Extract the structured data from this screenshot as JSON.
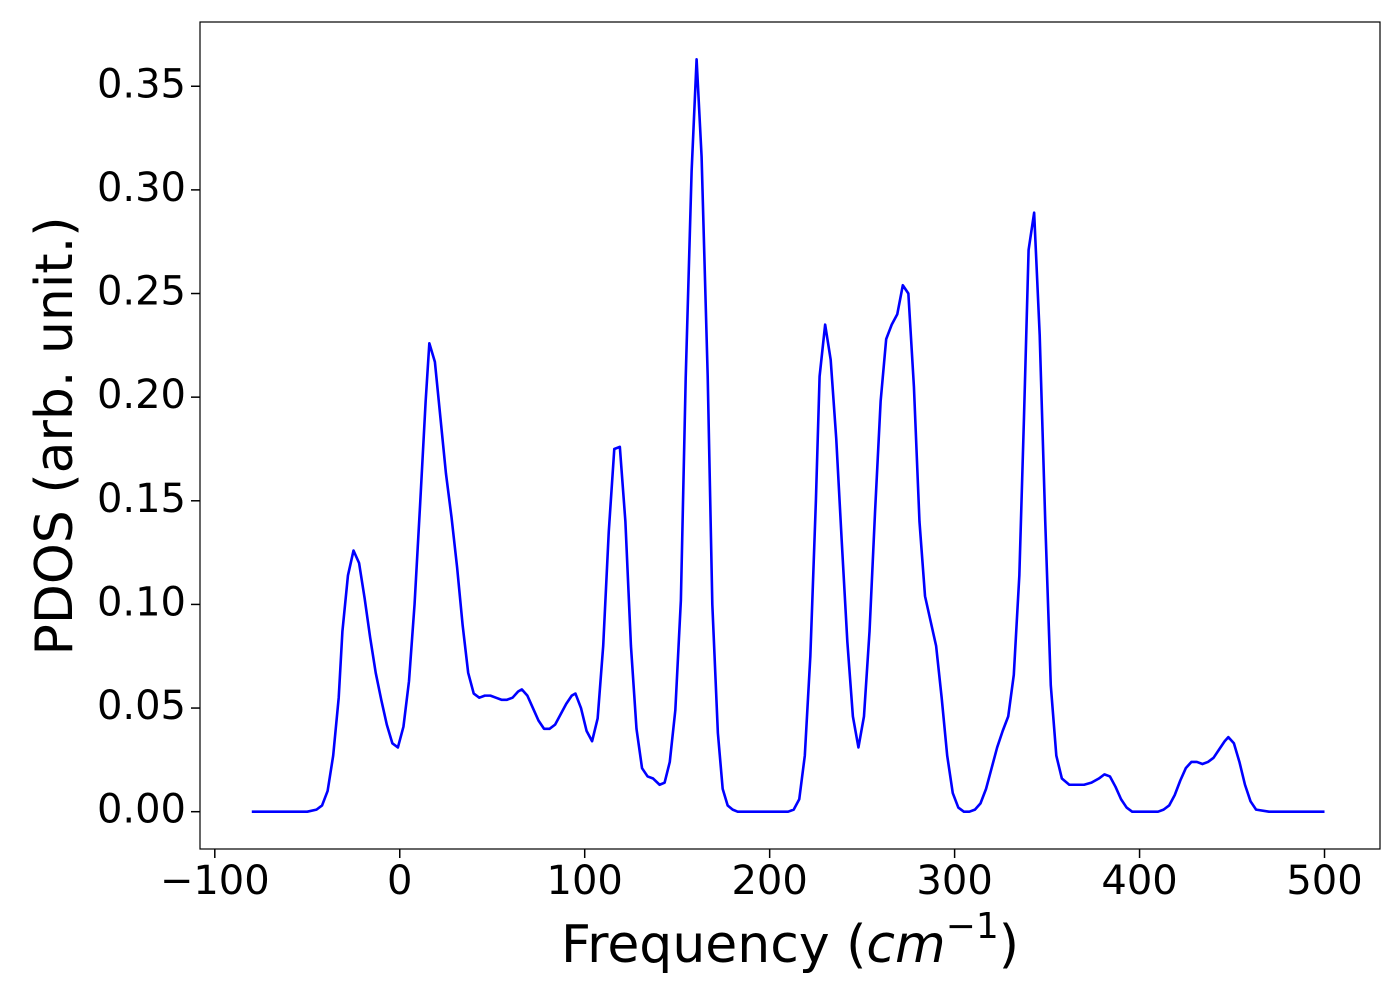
{
  "chart_data": {
    "type": "line",
    "ylabel": "PDOS (arb. unit.)",
    "xlabel_parts": [
      "Frequency (",
      "cm",
      "−1",
      ")"
    ],
    "xlim": [
      -108,
      530
    ],
    "ylim": [
      -0.018,
      0.381
    ],
    "xticks": [
      {
        "value": -100,
        "label": "−100"
      },
      0,
      100,
      200,
      300,
      400,
      500
    ],
    "yticks": [
      {
        "value": 0,
        "label": "0.00"
      },
      {
        "value": 0.05,
        "label": "0.05"
      },
      {
        "value": 0.1,
        "label": "0.10"
      },
      {
        "value": 0.15,
        "label": "0.15"
      },
      {
        "value": 0.2,
        "label": "0.20"
      },
      {
        "value": 0.25,
        "label": "0.25"
      },
      {
        "value": 0.3,
        "label": "0.30"
      },
      {
        "value": 0.35,
        "label": "0.35"
      }
    ],
    "x": [
      -80,
      -50,
      -45,
      -42,
      -39,
      -36,
      -33,
      -31,
      -28,
      -25,
      -22,
      -19,
      -16,
      -13,
      -10,
      -7,
      -4,
      -1,
      2,
      5,
      8,
      11,
      14,
      16,
      19,
      22,
      25,
      28,
      31,
      34,
      37,
      40,
      43,
      46,
      49,
      52,
      55,
      58,
      61,
      64,
      66,
      69,
      72,
      75,
      78,
      81,
      84,
      87,
      90,
      93,
      95,
      98,
      101,
      104,
      107,
      110,
      113,
      116,
      119,
      122,
      125,
      128,
      131,
      134,
      137,
      140.5,
      143.2,
      146,
      149,
      152,
      154.6,
      157.8,
      160.5,
      163.2,
      166.5,
      169,
      172,
      174.6,
      177.3,
      180,
      182.7,
      210,
      213,
      216,
      219,
      222,
      225,
      227,
      230,
      233,
      236,
      239,
      242,
      245,
      248,
      251,
      254,
      257,
      260,
      263,
      266,
      269,
      272,
      275,
      278,
      281,
      284,
      287,
      290,
      293,
      296,
      299,
      302,
      305,
      308,
      311,
      314,
      317,
      320,
      323,
      326,
      329,
      332,
      335,
      337.5,
      340,
      343,
      346,
      349,
      352,
      355,
      358,
      362,
      366,
      370,
      374,
      378,
      381,
      384,
      387,
      390,
      393,
      396,
      400,
      410,
      413,
      416,
      419,
      422,
      425,
      428,
      431,
      434,
      437,
      440,
      443,
      446,
      448,
      451,
      454,
      457,
      460,
      463,
      470,
      500
    ],
    "series": [
      {
        "color": "#0000ff",
        "values": [
          0,
          0,
          0.001,
          0.003,
          0.01,
          0.027,
          0.055,
          0.087,
          0.114,
          0.126,
          0.12,
          0.103,
          0.084,
          0.067,
          0.054,
          0.042,
          0.033,
          0.031,
          0.041,
          0.063,
          0.1,
          0.148,
          0.198,
          0.226,
          0.217,
          0.19,
          0.163,
          0.142,
          0.118,
          0.09,
          0.067,
          0.057,
          0.055,
          0.056,
          0.056,
          0.055,
          0.054,
          0.054,
          0.055,
          0.058,
          0.059,
          0.056,
          0.05,
          0.044,
          0.04,
          0.04,
          0.042,
          0.047,
          0.052,
          0.056,
          0.057,
          0.05,
          0.039,
          0.034,
          0.045,
          0.08,
          0.135,
          0.175,
          0.176,
          0.14,
          0.08,
          0.04,
          0.021,
          0.017,
          0.016,
          0.013,
          0.014,
          0.024,
          0.049,
          0.102,
          0.209,
          0.309,
          0.363,
          0.316,
          0.21,
          0.1,
          0.038,
          0.011,
          0.003,
          0.001,
          0,
          0,
          0.001,
          0.006,
          0.027,
          0.075,
          0.15,
          0.21,
          0.235,
          0.218,
          0.18,
          0.13,
          0.082,
          0.046,
          0.031,
          0.046,
          0.087,
          0.145,
          0.198,
          0.228,
          0.235,
          0.24,
          0.254,
          0.25,
          0.205,
          0.14,
          0.104,
          0.092,
          0.08,
          0.055,
          0.027,
          0.009,
          0.002,
          0,
          0,
          0.001,
          0.004,
          0.011,
          0.021,
          0.031,
          0.039,
          0.046,
          0.066,
          0.114,
          0.19,
          0.271,
          0.289,
          0.23,
          0.14,
          0.061,
          0.027,
          0.016,
          0.013,
          0.013,
          0.013,
          0.014,
          0.016,
          0.018,
          0.017,
          0.012,
          0.006,
          0.002,
          0,
          0,
          0,
          0.001,
          0.003,
          0.008,
          0.015,
          0.021,
          0.024,
          0.024,
          0.023,
          0.024,
          0.026,
          0.03,
          0.034,
          0.036,
          0.033,
          0.024,
          0.013,
          0.005,
          0.001,
          0,
          0
        ]
      }
    ]
  }
}
